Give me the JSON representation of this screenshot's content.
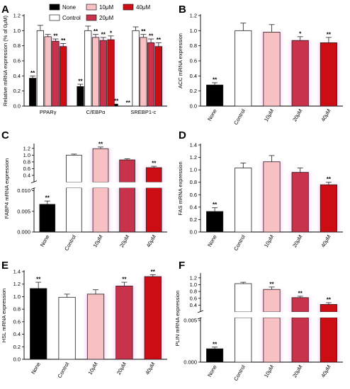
{
  "colors": {
    "None": "#000000",
    "Control": "#ffffff",
    "10μM": "#f7c0c2",
    "20μM": "#c8324a",
    "40μM": "#cc0e14",
    "stroke": "#222222",
    "highlight": "#f060d8"
  },
  "legend": [
    "None",
    "Control",
    "10μM",
    "20μM",
    "40μM"
  ],
  "chart_data": [
    {
      "panel": "A",
      "type": "bar",
      "ylabel": "Relative mRNA expression (% of 0μM)",
      "ylim": [
        0,
        1.2
      ],
      "yticks": [
        "0.0",
        "0.2",
        "0.4",
        "0.6",
        "0.8",
        "1.0",
        "1.2"
      ],
      "categories": [
        "PPARγ",
        "C/EBPα",
        "SREBP1-c"
      ],
      "series": [
        {
          "name": "None",
          "values": [
            0.37,
            0.26,
            0.0
          ],
          "errors": [
            0.03,
            0.03,
            0.0
          ],
          "stars": [
            "**",
            "**",
            "**"
          ]
        },
        {
          "name": "Control",
          "values": [
            1.0,
            1.0,
            1.0
          ],
          "errors": [
            0.07,
            0.06,
            0.05
          ],
          "stars": [
            "",
            "",
            ""
          ]
        },
        {
          "name": "10μM",
          "values": [
            0.92,
            0.91,
            0.91
          ],
          "errors": [
            0.03,
            0.04,
            0.04
          ],
          "stars": [
            "",
            "**",
            "**"
          ]
        },
        {
          "name": "20μM",
          "values": [
            0.86,
            0.87,
            0.84
          ],
          "errors": [
            0.03,
            0.04,
            0.05
          ],
          "stars": [
            "**",
            "**",
            "**"
          ]
        },
        {
          "name": "40μM",
          "values": [
            0.79,
            0.88,
            0.79
          ],
          "errors": [
            0.04,
            0.05,
            0.05
          ],
          "stars": [
            "**",
            "*",
            "**"
          ]
        }
      ],
      "extra_marks": [
        {
          "x_category": "C/EBPα",
          "value": 0.03,
          "stars": "**"
        }
      ]
    },
    {
      "panel": "B",
      "type": "bar",
      "ylabel": "ACC  mRNA expression",
      "ylim": [
        0,
        1.2
      ],
      "yticks": [
        "0.0",
        "0.2",
        "0.4",
        "0.6",
        "0.8",
        "1.0",
        "1.2"
      ],
      "categories": [
        "None",
        "Control",
        "10μM",
        "20μM",
        "40μM"
      ],
      "values": [
        0.28,
        1.0,
        0.98,
        0.87,
        0.84
      ],
      "errors": [
        0.03,
        0.1,
        0.1,
        0.05,
        0.07
      ],
      "stars": [
        "**",
        "",
        "",
        "*",
        "**"
      ]
    },
    {
      "panel": "C",
      "type": "bar",
      "ylabel": "FABP4  mRNA expression",
      "broken_axis": true,
      "lower_ylim": [
        0,
        0.01
      ],
      "lower_yticks": [
        "0.000",
        "0.005",
        "0.010"
      ],
      "upper_ylim": [
        0.2,
        1.3
      ],
      "upper_yticks": [
        "0.4",
        "0.6",
        "0.8",
        "1.0",
        "1.2"
      ],
      "categories": [
        "None",
        "Control",
        "10μM",
        "20μM",
        "40μM"
      ],
      "values": [
        0.0067,
        1.0,
        1.19,
        0.86,
        0.63
      ],
      "errors": [
        0.0008,
        0.03,
        0.05,
        0.03,
        0.04
      ],
      "stars": [
        "**",
        "",
        "**",
        "",
        "**"
      ]
    },
    {
      "panel": "D",
      "type": "bar",
      "ylabel": "FAS  mRNA expression",
      "ylim": [
        0,
        1.4
      ],
      "yticks": [
        "0.0",
        "0.2",
        "0.4",
        "0.6",
        "0.8",
        "1.0",
        "1.2",
        "1.4"
      ],
      "categories": [
        "None",
        "Control",
        "10μM",
        "20μM",
        "40μM"
      ],
      "values": [
        0.33,
        1.03,
        1.13,
        0.96,
        0.76
      ],
      "errors": [
        0.06,
        0.08,
        0.1,
        0.07,
        0.04
      ],
      "stars": [
        "**",
        "",
        "",
        "",
        "**"
      ]
    },
    {
      "panel": "E",
      "type": "bar",
      "ylabel": "HSL  mRNA expression",
      "ylim": [
        0,
        1.4
      ],
      "yticks": [
        "0.0",
        "0.2",
        "0.4",
        "0.6",
        "0.8",
        "1.0",
        "1.2",
        "1.4"
      ],
      "categories": [
        "None",
        "Control",
        "10μM",
        "20μM",
        "40μM"
      ],
      "values": [
        1.13,
        0.99,
        1.04,
        1.17,
        1.32
      ],
      "errors": [
        0.1,
        0.05,
        0.07,
        0.06,
        0.03
      ],
      "stars": [
        "**",
        "",
        "",
        "**",
        "**"
      ]
    },
    {
      "panel": "F",
      "type": "bar",
      "ylabel": "PLIN  mRNA expression",
      "broken_axis": true,
      "lower_ylim": [
        0,
        0.005
      ],
      "lower_yticks": [
        "0.000",
        "0.005"
      ],
      "upper_ylim": [
        0.2,
        1.3
      ],
      "upper_yticks": [
        "0.4",
        "0.6",
        "0.8",
        "1.0",
        "1.2"
      ],
      "categories": [
        "None",
        "Control",
        "10μM",
        "20μM",
        "40μM"
      ],
      "values": [
        0.0016,
        1.03,
        0.86,
        0.62,
        0.42
      ],
      "errors": [
        0.0002,
        0.04,
        0.07,
        0.04,
        0.05
      ],
      "stars": [
        "**",
        "",
        "**",
        "**",
        "**"
      ]
    }
  ]
}
